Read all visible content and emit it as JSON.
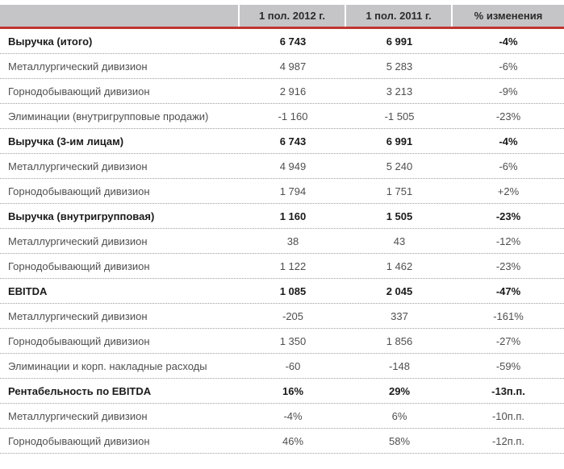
{
  "table": {
    "header": {
      "label_col": "",
      "col_2012": "1 пол. 2012 г.",
      "col_2011": "1 пол. 2011 г.",
      "col_change": "% изменения"
    },
    "rows": [
      {
        "label": "Выручка (итого)",
        "label_u": "",
        "v2012": "6 743",
        "v2011": "6 991",
        "change": "-4%",
        "bold": true
      },
      {
        "label": "Металлургический дивизион",
        "label_u": "",
        "v2012": "4 987",
        "v2011": "5 283",
        "change": "-6%",
        "bold": false
      },
      {
        "label": "Горнодобывающий дивизион",
        "label_u": "",
        "v2012": "2 916",
        "v2011": "3 213",
        "change": "-9%",
        "bold": false
      },
      {
        "label": "Элиминации (внутригрупповые продажи)",
        "label_u": "",
        "v2012": "-1 160",
        "v2011": "-1 505",
        "change": "-23%",
        "bold": false
      },
      {
        "label": "Выручка (3-им лицам)",
        "label_u": "",
        "v2012": "6 743",
        "v2011": "6 991",
        "change": "-4%",
        "bold": true
      },
      {
        "label": "Металлургический дивизион",
        "label_u": "",
        "v2012": "4 949",
        "v2011": "5 240",
        "change": "-6%",
        "bold": false
      },
      {
        "label": "Горнодобывающий дивизион",
        "label_u": "",
        "v2012": "1 794",
        "v2011": "1 751",
        "change": "+2%",
        "bold": false
      },
      {
        "label": "Выручка (внутригрупповая)",
        "label_u": "",
        "v2012": "1 160",
        "v2011": "1 505",
        "change": "-23%",
        "bold": true
      },
      {
        "label": "Металлургический дивизион",
        "label_u": "",
        "v2012": "38",
        "v2011": "43",
        "change": "-12%",
        "bold": false
      },
      {
        "label": "Горнодобывающий дивизион",
        "label_u": "",
        "v2012": "1 122",
        "v2011": "1 462",
        "change": "-23%",
        "bold": false
      },
      {
        "label": "",
        "label_u": "EBITDA",
        "v2012": "1 085",
        "v2011": "2 045",
        "change": "-47%",
        "bold": true
      },
      {
        "label": "Металлургический дивизион",
        "label_u": "",
        "v2012": "-205",
        "v2011": "337",
        "change": "-161%",
        "bold": false
      },
      {
        "label": "Горнодобывающий дивизион",
        "label_u": "",
        "v2012": "1 350",
        "v2011": "1 856",
        "change": "-27%",
        "bold": false
      },
      {
        "label": "Элиминации и корп. накладные расходы",
        "label_u": "",
        "v2012": "-60",
        "v2011": "-148",
        "change": "-59%",
        "bold": false
      },
      {
        "label": "Рентабельность по ",
        "label_u": "EBITDA",
        "v2012": "16%",
        "v2011": "29%",
        "change": "-13п.п.",
        "bold": true
      },
      {
        "label": "Металлургический дивизион",
        "label_u": "",
        "v2012": "-4%",
        "v2011": "6%",
        "change": "-10п.п.",
        "bold": false
      },
      {
        "label": "Горнодобывающий дивизион",
        "label_u": "",
        "v2012": "46%",
        "v2011": "58%",
        "change": "-12п.п.",
        "bold": false
      }
    ]
  },
  "colors": {
    "accent_red": "#c0352f",
    "header_bg": "#c5c5c7",
    "header_text": "#2b2b2b",
    "text_bold": "#1a1a1a",
    "text_normal": "#4f4f4f",
    "dotted_separator": "#9e9e9e",
    "page_bg": "#ffffff"
  }
}
